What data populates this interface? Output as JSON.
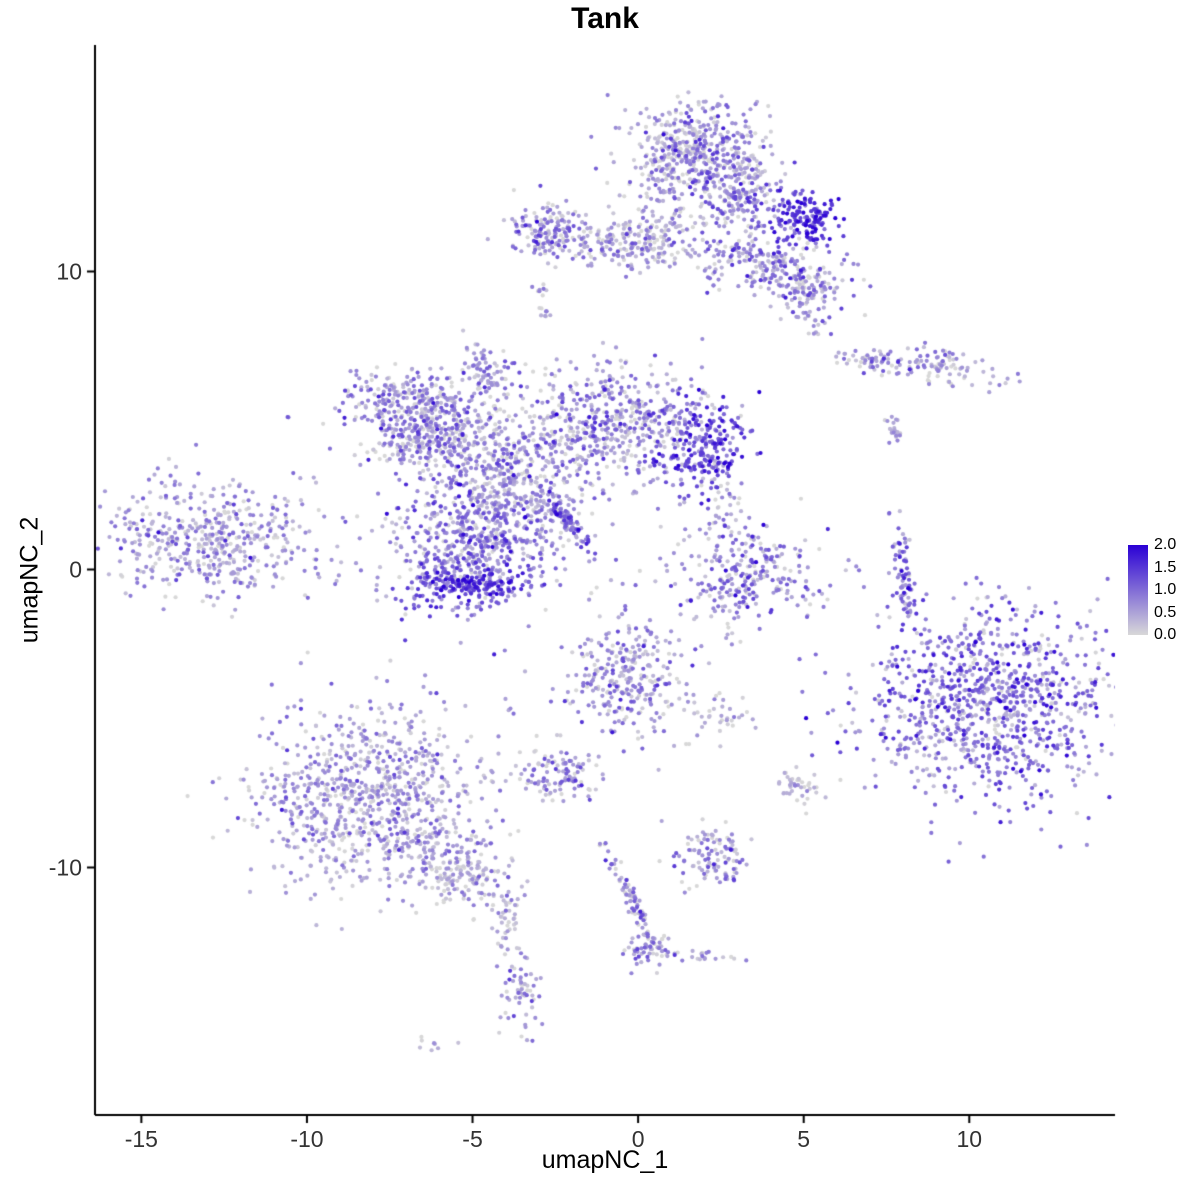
{
  "title": "Tank",
  "chart_data": {
    "type": "scatter",
    "title": "Tank",
    "xlabel": "umapNC_1",
    "ylabel": "umapNC_2",
    "xlim": [
      -16.4,
      14.4
    ],
    "ylim": [
      -18.3,
      17.6
    ],
    "x_ticks": [
      -15,
      -10,
      -5,
      0,
      5,
      10
    ],
    "x_tick_labels": [
      "-15",
      "-10",
      "-5",
      "0",
      "5",
      "10"
    ],
    "y_ticks": [
      10,
      0,
      -10
    ],
    "y_tick_labels": [
      "10",
      "0",
      "-10"
    ],
    "grid": false,
    "legend_position": "right",
    "point_radius": 2.1,
    "seed": 42,
    "colorbar": {
      "labels": [
        "2.0",
        "1.5",
        "1.0",
        "0.5",
        "0.0"
      ],
      "values": [
        2.0,
        1.5,
        1.0,
        0.5,
        0.0
      ],
      "vmin": 0,
      "vmax": 2,
      "low_color": "#D8D8D8",
      "high_color": "#2A00D5"
    },
    "clusters": [
      {
        "name": "top-main",
        "x": 1.7,
        "y": 14.0,
        "sx": 0.95,
        "sy": 0.85,
        "rot": 0,
        "n": 480,
        "mean": 0.5,
        "sd": 0.5
      },
      {
        "name": "top-bridge",
        "x": 3.1,
        "y": 12.6,
        "sx": 0.6,
        "sy": 0.6,
        "rot": 0,
        "n": 180,
        "mean": 0.6,
        "sd": 0.5
      },
      {
        "name": "top-dark-knot",
        "x": 5.0,
        "y": 11.8,
        "sx": 0.55,
        "sy": 0.4,
        "rot": -10,
        "n": 150,
        "mean": 1.5,
        "sd": 0.35
      },
      {
        "name": "band-right",
        "x": 4.1,
        "y": 10.1,
        "sx": 1.2,
        "sy": 0.55,
        "rot": -15,
        "n": 260,
        "mean": 0.55,
        "sd": 0.5
      },
      {
        "name": "band-right-low",
        "x": 5.3,
        "y": 8.9,
        "sx": 0.4,
        "sy": 0.5,
        "rot": 0,
        "n": 60,
        "mean": 0.5,
        "sd": 0.45
      },
      {
        "name": "band-mid",
        "x": -0.3,
        "y": 10.9,
        "sx": 1.1,
        "sy": 0.4,
        "rot": -3,
        "n": 200,
        "mean": 0.4,
        "sd": 0.45
      },
      {
        "name": "band-link",
        "x": 0.8,
        "y": 11.7,
        "sx": 0.8,
        "sy": 0.6,
        "rot": 0,
        "n": 60,
        "mean": 0.35,
        "sd": 0.4
      },
      {
        "name": "band-left",
        "x": -2.8,
        "y": 11.4,
        "sx": 0.55,
        "sy": 0.5,
        "rot": 0,
        "n": 140,
        "mean": 0.6,
        "sd": 0.5
      },
      {
        "name": "tiny-upper-a",
        "x": -2.9,
        "y": 9.4,
        "sx": 0.12,
        "sy": 0.15,
        "rot": 0,
        "n": 8,
        "mean": 0.4,
        "sd": 0.3
      },
      {
        "name": "tiny-upper-b",
        "x": -2.85,
        "y": 8.6,
        "sx": 0.12,
        "sy": 0.15,
        "rot": 0,
        "n": 8,
        "mean": 0.3,
        "sd": 0.3
      },
      {
        "name": "strip-right-a",
        "x": 7.1,
        "y": 6.9,
        "sx": 0.65,
        "sy": 0.2,
        "rot": -5,
        "n": 50,
        "mean": 0.5,
        "sd": 0.45
      },
      {
        "name": "strip-right-b",
        "x": 9.1,
        "y": 6.9,
        "sx": 0.9,
        "sy": 0.3,
        "rot": -12,
        "n": 90,
        "mean": 0.45,
        "sd": 0.4
      },
      {
        "name": "strip-right-c",
        "x": 7.7,
        "y": 4.7,
        "sx": 0.2,
        "sy": 0.3,
        "rot": 0,
        "n": 20,
        "mean": 0.4,
        "sd": 0.35
      },
      {
        "name": "central-spur",
        "x": -4.6,
        "y": 6.7,
        "sx": 0.35,
        "sy": 0.55,
        "rot": 15,
        "n": 80,
        "mean": 0.5,
        "sd": 0.4
      },
      {
        "name": "central-left-top",
        "x": -6.6,
        "y": 5.5,
        "sx": 1.05,
        "sy": 0.6,
        "rot": -8,
        "n": 320,
        "mean": 0.5,
        "sd": 0.45
      },
      {
        "name": "central-left-low",
        "x": -6.4,
        "y": 4.3,
        "sx": 1.0,
        "sy": 0.5,
        "rot": 0,
        "n": 220,
        "mean": 0.5,
        "sd": 0.45
      },
      {
        "name": "central-bridge",
        "x": -4.2,
        "y": 3.5,
        "sx": 1.1,
        "sy": 0.7,
        "rot": 10,
        "n": 280,
        "mean": 0.55,
        "sd": 0.45
      },
      {
        "name": "central-right",
        "x": -0.9,
        "y": 4.9,
        "sx": 1.5,
        "sy": 1.05,
        "rot": 0,
        "n": 520,
        "mean": 0.55,
        "sd": 0.5
      },
      {
        "name": "central-dark-knot",
        "x": 1.9,
        "y": 4.1,
        "sx": 0.7,
        "sy": 0.8,
        "rot": 0,
        "n": 240,
        "mean": 1.25,
        "sd": 0.45
      },
      {
        "name": "central-below",
        "x": -3.4,
        "y": 2.3,
        "sx": 0.9,
        "sy": 0.5,
        "rot": 0,
        "n": 120,
        "mean": 0.45,
        "sd": 0.4
      },
      {
        "name": "central-streak",
        "x": -2.1,
        "y": 1.6,
        "sx": 0.55,
        "sy": 0.1,
        "rot": -56,
        "n": 90,
        "mean": 0.9,
        "sd": 0.5
      },
      {
        "name": "lower-central-blob",
        "x": -4.9,
        "y": 0.7,
        "sx": 1.35,
        "sy": 1.05,
        "rot": 0,
        "n": 600,
        "mean": 0.75,
        "sd": 0.5
      },
      {
        "name": "lower-central-rim",
        "x": -5.1,
        "y": -0.5,
        "sx": 0.9,
        "sy": 0.3,
        "rot": 0,
        "n": 150,
        "mean": 1.35,
        "sd": 0.4
      },
      {
        "name": "left-cluster",
        "x": -12.8,
        "y": 1.0,
        "sx": 1.6,
        "sy": 0.95,
        "rot": -5,
        "n": 480,
        "mean": 0.5,
        "sd": 0.4
      },
      {
        "name": "mid-right-cluster",
        "x": 3.2,
        "y": -0.1,
        "sx": 1.05,
        "sy": 0.9,
        "rot": 0,
        "n": 280,
        "mean": 0.65,
        "sd": 0.5
      },
      {
        "name": "mid-right-strays",
        "x": 2.5,
        "y": 2.1,
        "sx": 0.3,
        "sy": 0.7,
        "rot": 0,
        "n": 30,
        "mean": 0.3,
        "sd": 0.3
      },
      {
        "name": "vertical-strip",
        "x": 8.0,
        "y": -0.2,
        "sx": 0.18,
        "sy": 0.95,
        "rot": 5,
        "n": 80,
        "mean": 0.8,
        "sd": 0.5
      },
      {
        "name": "right-large",
        "x": 10.6,
        "y": -4.5,
        "sx": 1.95,
        "sy": 1.65,
        "rot": 0,
        "n": 1000,
        "mean": 0.85,
        "sd": 0.5
      },
      {
        "name": "bottomleft-large",
        "x": -8.0,
        "y": -7.6,
        "sx": 1.85,
        "sy": 1.65,
        "rot": 0,
        "n": 900,
        "mean": 0.45,
        "sd": 0.4
      },
      {
        "name": "bottomleft-tail",
        "x": -5.4,
        "y": -10.0,
        "sx": 0.9,
        "sy": 0.55,
        "rot": -30,
        "n": 160,
        "mean": 0.35,
        "sd": 0.35
      },
      {
        "name": "bottomleft-tip",
        "x": -4.0,
        "y": -11.5,
        "sx": 0.25,
        "sy": 0.5,
        "rot": 0,
        "n": 40,
        "mean": 0.4,
        "sd": 0.35
      },
      {
        "name": "bottomleft-dots",
        "x": -3.9,
        "y": -12.8,
        "sx": 0.15,
        "sy": 0.3,
        "rot": 0,
        "n": 10,
        "mean": 0.3,
        "sd": 0.3
      },
      {
        "name": "bottom-small-cluster",
        "x": -3.4,
        "y": -14.4,
        "sx": 0.35,
        "sy": 0.65,
        "rot": 0,
        "n": 60,
        "mean": 0.55,
        "sd": 0.45
      },
      {
        "name": "bottom-tiny",
        "x": -6.1,
        "y": -15.9,
        "sx": 0.25,
        "sy": 0.15,
        "rot": 0,
        "n": 8,
        "mean": 0.2,
        "sd": 0.2
      },
      {
        "name": "center-bottom",
        "x": -0.3,
        "y": -3.7,
        "sx": 1.0,
        "sy": 1.05,
        "rot": 0,
        "n": 300,
        "mean": 0.5,
        "sd": 0.45
      },
      {
        "name": "center-bottom-strays",
        "x": 2.6,
        "y": -4.9,
        "sx": 0.4,
        "sy": 0.3,
        "rot": 0,
        "n": 30,
        "mean": 0.25,
        "sd": 0.25
      },
      {
        "name": "small-left-of-center",
        "x": -2.3,
        "y": -6.9,
        "sx": 0.55,
        "sy": 0.4,
        "rot": 0,
        "n": 100,
        "mean": 0.6,
        "sd": 0.45
      },
      {
        "name": "small-bottom-mid",
        "x": 2.3,
        "y": -9.6,
        "sx": 0.6,
        "sy": 0.5,
        "rot": 0,
        "n": 110,
        "mean": 0.5,
        "sd": 0.45
      },
      {
        "name": "small-right-low",
        "x": 4.9,
        "y": -7.3,
        "sx": 0.35,
        "sy": 0.3,
        "rot": 0,
        "n": 40,
        "mean": 0.25,
        "sd": 0.25
      },
      {
        "name": "bottom-streak",
        "x": -0.2,
        "y": -11.0,
        "sx": 0.8,
        "sy": 0.1,
        "rot": -66,
        "n": 80,
        "mean": 0.55,
        "sd": 0.45
      },
      {
        "name": "bottom-streak-blob",
        "x": 0.2,
        "y": -12.7,
        "sx": 0.35,
        "sy": 0.35,
        "rot": 0,
        "n": 50,
        "mean": 0.5,
        "sd": 0.45
      },
      {
        "name": "bottom-streak-tail",
        "x": 1.4,
        "y": -12.9,
        "sx": 0.75,
        "sy": 0.12,
        "rot": -8,
        "n": 30,
        "mean": 0.4,
        "sd": 0.35
      },
      {
        "name": "lone-dot",
        "x": -10.5,
        "y": 5.0,
        "sx": 0.08,
        "sy": 0.08,
        "rot": 0,
        "n": 2,
        "mean": 0.9,
        "sd": 0.2
      }
    ]
  }
}
